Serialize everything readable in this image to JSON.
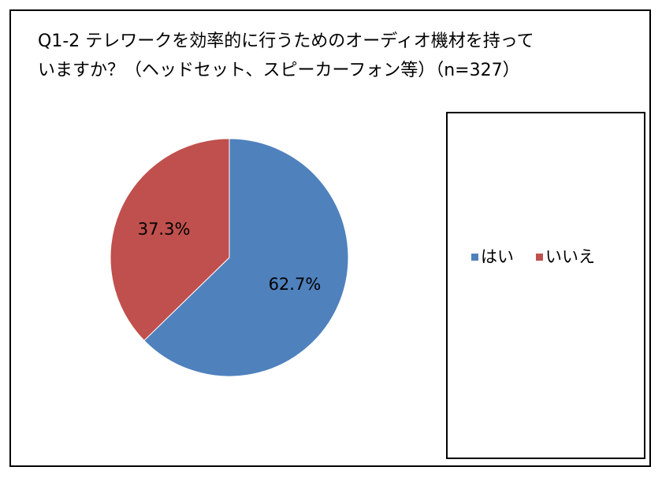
{
  "chart_data": {
    "type": "pie",
    "title": "Q1-2 テレワークを効率的に行うためのオーディオ機材を持っていますか？（ヘッドセット、スピーカーフォン等）（n=327）",
    "categories": [
      "はい",
      "いいえ"
    ],
    "values": [
      62.7,
      37.3
    ],
    "value_labels": [
      "62.7%",
      "37.3%"
    ],
    "colors": [
      "#4f81bd",
      "#c0504d"
    ],
    "legend": "right"
  }
}
